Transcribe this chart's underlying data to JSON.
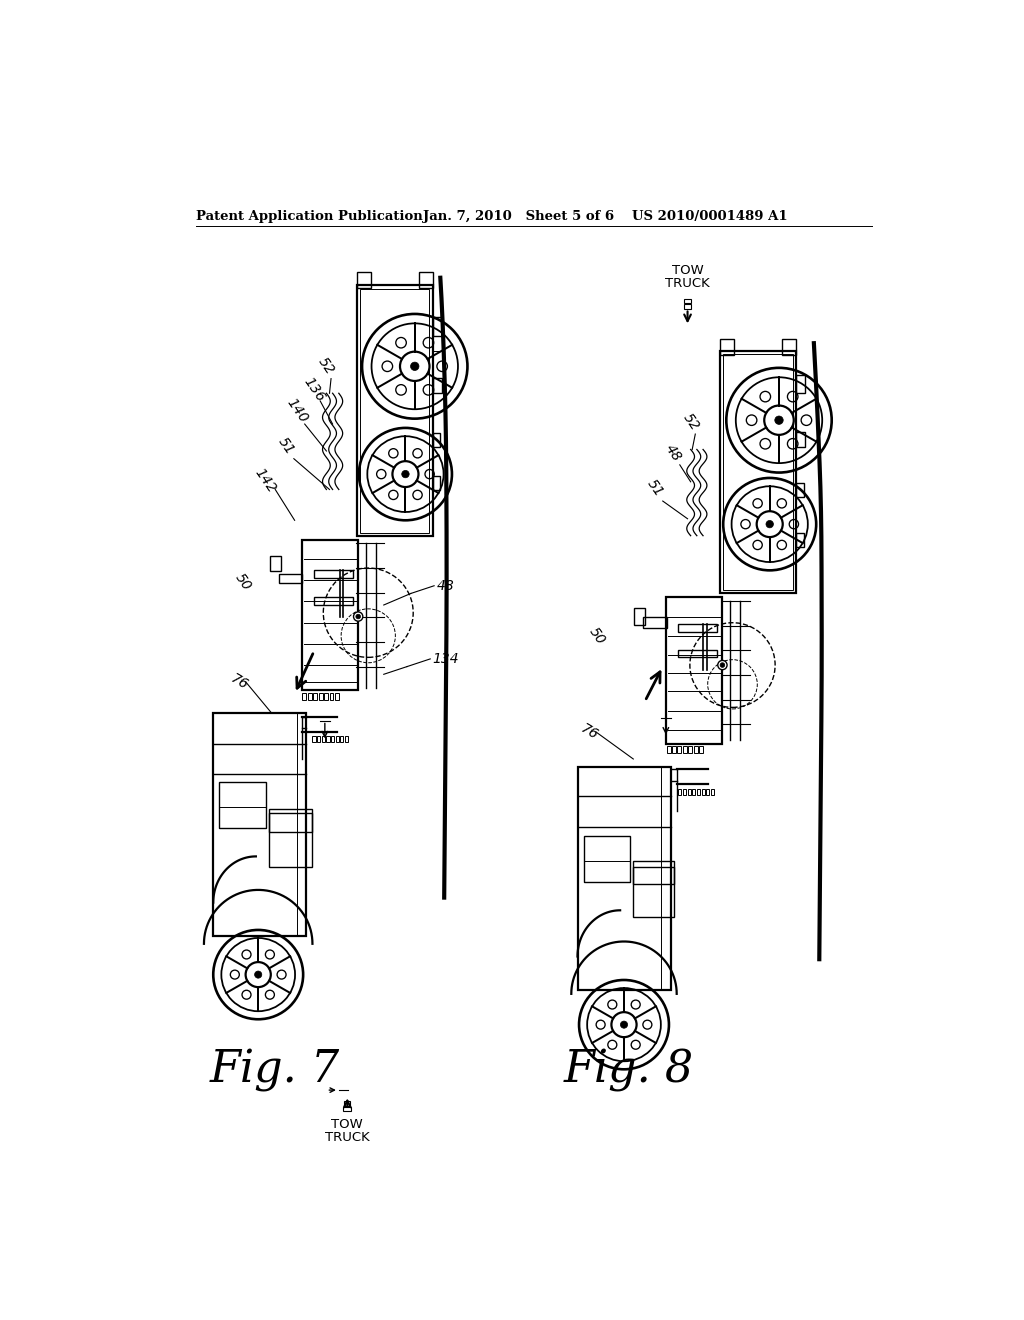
{
  "background_color": "#ffffff",
  "header_left": "Patent Application Publication",
  "header_center": "Jan. 7, 2010   Sheet 5 of 6",
  "header_right": "US 2010/0001489 A1"
}
